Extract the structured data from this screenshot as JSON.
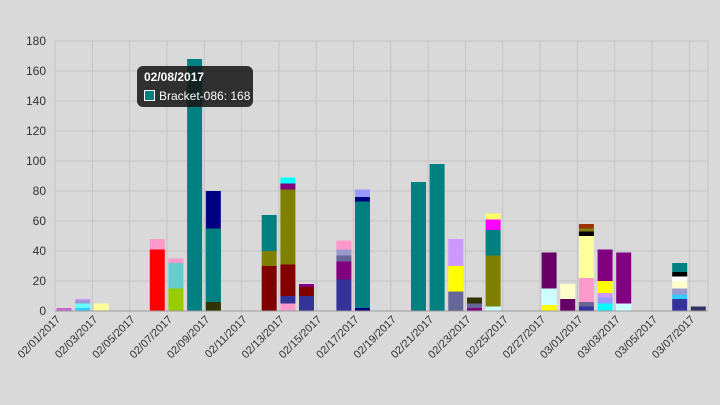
{
  "chart_data": {
    "type": "bar",
    "stacked": true,
    "title": "",
    "xlabel": "",
    "ylabel": "",
    "ylim": [
      0,
      180
    ],
    "yticks": [
      0,
      20,
      40,
      60,
      80,
      100,
      120,
      140,
      160,
      180
    ],
    "grid": true,
    "legend": "none",
    "categories": [
      "02/01/2017",
      "02/02/2017",
      "02/03/2017",
      "02/04/2017",
      "02/05/2017",
      "02/06/2017",
      "02/07/2017",
      "02/08/2017",
      "02/09/2017",
      "02/10/2017",
      "02/11/2017",
      "02/12/2017",
      "02/13/2017",
      "02/14/2017",
      "02/15/2017",
      "02/16/2017",
      "02/17/2017",
      "02/18/2017",
      "02/19/2017",
      "02/20/2017",
      "02/21/2017",
      "02/22/2017",
      "02/23/2017",
      "02/24/2017",
      "02/25/2017",
      "02/26/2017",
      "02/27/2017",
      "02/28/2017",
      "03/01/2017",
      "03/02/2017",
      "03/03/2017",
      "03/04/2017",
      "03/05/2017",
      "03/06/2017",
      "03/07/2017"
    ],
    "xtick_labels": [
      "02/01/2017",
      "02/03/2017",
      "02/05/2017",
      "02/07/2017",
      "02/09/2017",
      "02/11/2017",
      "02/13/2017",
      "02/15/2017",
      "02/17/2017",
      "02/19/2017",
      "02/21/2017",
      "02/23/2017",
      "02/25/2017",
      "02/27/2017",
      "03/01/2017",
      "03/03/2017",
      "03/05/2017",
      "03/07/2017"
    ],
    "bars": [
      {
        "date": "02/01/2017",
        "left": [
          {
            "v": 2,
            "c": "#cc66cc"
          }
        ]
      },
      {
        "date": "02/02/2017",
        "left": [
          {
            "v": 2,
            "c": "#33ccff"
          },
          {
            "v": 3,
            "c": "#66ffff"
          },
          {
            "v": 2,
            "c": "#9999cc"
          },
          {
            "v": 1,
            "c": "#cc99ff"
          }
        ]
      },
      {
        "date": "02/02/2017",
        "right": [
          {
            "v": 5,
            "c": "#ffff99"
          }
        ]
      },
      {
        "date": "02/06/2017",
        "left": [
          {
            "v": 41,
            "c": "#ff0000"
          },
          {
            "v": 7,
            "c": "#ff99cc"
          }
        ],
        "right": [
          {
            "v": 15,
            "c": "#99cc00"
          },
          {
            "v": 17,
            "c": "#66cccc"
          },
          {
            "v": 3,
            "c": "#ff99cc"
          }
        ]
      },
      {
        "date": "02/08/2017",
        "left": [
          {
            "v": 168,
            "c": "#008080"
          }
        ],
        "right": [
          {
            "v": 7,
            "c": "#333300"
          },
          {
            "v": 17,
            "c": "#008080"
          },
          {
            "v": 56,
            "c": "#000080"
          }
        ]
      },
      {
        "date": "02/09/2017",
        "left": [
          {
            "v": 6,
            "c": "#333300"
          },
          {
            "v": 49,
            "c": "#008080"
          }
        ]
      },
      {
        "date": "02/12/2017",
        "left": [
          {
            "v": 30,
            "c": "#800000"
          },
          {
            "v": 10,
            "c": "#808000"
          },
          {
            "v": 24,
            "c": "#008080"
          }
        ]
      },
      {
        "date": "02/13/2017",
        "left": [
          {
            "v": 5,
            "c": "#ff99cc"
          },
          {
            "v": 5,
            "c": "#333399"
          },
          {
            "v": 21,
            "c": "#800000"
          },
          {
            "v": 50,
            "c": "#808000"
          },
          {
            "v": 4,
            "c": "#800080"
          },
          {
            "v": 4,
            "c": "#00ffff"
          }
        ],
        "right": [
          {
            "v": 10,
            "c": "#333399"
          },
          {
            "v": 6,
            "c": "#800000"
          },
          {
            "v": 2,
            "c": "#800080"
          }
        ]
      },
      {
        "date": "02/16/2017",
        "left": [
          {
            "v": 21,
            "c": "#333399"
          },
          {
            "v": 12,
            "c": "#800080"
          },
          {
            "v": 4,
            "c": "#666699"
          },
          {
            "v": 4,
            "c": "#9999cc"
          },
          {
            "v": 6,
            "c": "#ff99cc"
          }
        ],
        "right": [
          {
            "v": 2,
            "c": "#000080"
          },
          {
            "v": 71,
            "c": "#008080"
          },
          {
            "v": 3,
            "c": "#000080"
          },
          {
            "v": 5,
            "c": "#9999ff"
          }
        ]
      },
      {
        "date": "02/20/2017",
        "left": [
          {
            "v": 86,
            "c": "#008080"
          }
        ],
        "right": [
          {
            "v": 98,
            "c": "#008080"
          }
        ]
      },
      {
        "date": "02/22/2017",
        "left": [
          {
            "v": 13,
            "c": "#666699"
          },
          {
            "v": 17,
            "c": "#ffff00"
          },
          {
            "v": 18,
            "c": "#cc99ff"
          }
        ],
        "right": [
          {
            "v": 2,
            "c": "#800080"
          },
          {
            "v": 3,
            "c": "#666699"
          },
          {
            "v": 4,
            "c": "#333300"
          }
        ]
      },
      {
        "date": "02/24/2017",
        "left": [
          {
            "v": 3,
            "c": "#ccffff"
          },
          {
            "v": 34,
            "c": "#808000"
          },
          {
            "v": 17,
            "c": "#008080"
          },
          {
            "v": 7,
            "c": "#ff00ff"
          },
          {
            "v": 4,
            "c": "#ffff66"
          }
        ]
      },
      {
        "date": "02/27/2017",
        "left": [
          {
            "v": 4,
            "c": "#ffff00"
          },
          {
            "v": 11,
            "c": "#ccffff"
          },
          {
            "v": 24,
            "c": "#660066"
          }
        ],
        "right": [
          {
            "v": 8,
            "c": "#660066"
          },
          {
            "v": 10,
            "c": "#ffffcc"
          }
        ]
      },
      {
        "date": "03/01/2017",
        "left": [
          {
            "v": 3,
            "c": "#333399"
          },
          {
            "v": 3,
            "c": "#666699"
          },
          {
            "v": 16,
            "c": "#ff99cc"
          },
          {
            "v": 28,
            "c": "#ffff99"
          },
          {
            "v": 3,
            "c": "#000000"
          },
          {
            "v": 2,
            "c": "#808000"
          },
          {
            "v": 3,
            "c": "#993300"
          }
        ],
        "right": [
          {
            "v": 5,
            "c": "#00ffff"
          },
          {
            "v": 4,
            "c": "#9999ff"
          },
          {
            "v": 3,
            "c": "#cc99ff"
          },
          {
            "v": 8,
            "c": "#ffff00"
          },
          {
            "v": 21,
            "c": "#800080"
          }
        ]
      },
      {
        "date": "03/03/2017",
        "left": [
          {
            "v": 5,
            "c": "#ccffff"
          },
          {
            "v": 34,
            "c": "#800080"
          }
        ]
      },
      {
        "date": "03/06/2017",
        "left": [
          {
            "v": 8,
            "c": "#333399"
          },
          {
            "v": 3,
            "c": "#33ccff"
          },
          {
            "v": 4,
            "c": "#9999cc"
          },
          {
            "v": 5,
            "c": "#ffffcc"
          },
          {
            "v": 3,
            "c": "#ffffff"
          },
          {
            "v": 3,
            "c": "#000000"
          },
          {
            "v": 6,
            "c": "#008080"
          }
        ],
        "right": [
          {
            "v": 3,
            "c": "#333366"
          }
        ]
      }
    ]
  },
  "tooltip": {
    "title": "02/08/2017",
    "label": "Bracket-086: 168",
    "swatch_color": "#008080"
  }
}
